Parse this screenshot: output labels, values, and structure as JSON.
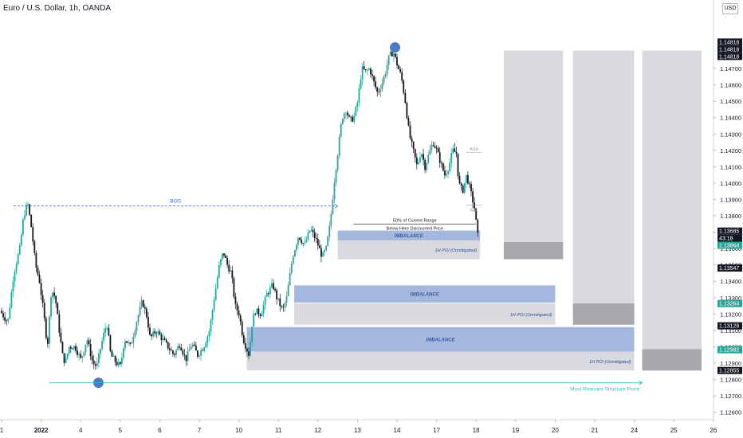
{
  "header": {
    "title": "Euro / U.S. Dollar, 1h, OANDA",
    "currency": "USD"
  },
  "chart_data": {
    "type": "candlestick",
    "symbol": "Euro / U.S. Dollar",
    "interval": "1h",
    "source": "OANDA",
    "ylim": [
      1.125,
      1.1488
    ],
    "price_ticks": [
      1.126,
      1.127,
      1.128,
      1.129,
      1.13,
      1.131,
      1.132,
      1.133,
      1.134,
      1.135,
      1.136,
      1.137,
      1.138,
      1.139,
      1.14,
      1.141,
      1.142,
      1.143,
      1.144,
      1.145,
      1.146,
      1.147
    ],
    "price_tick_labels": [
      "1.12600",
      "1.12700",
      "1.12800",
      "1.12900",
      "1.13000",
      "1.13100",
      "1.13200",
      "1.13300",
      "1.13400",
      "1.13500",
      "1.13600",
      "1.13700",
      "1.13800",
      "1.13900",
      "1.14000",
      "1.14100",
      "1.14200",
      "1.14300",
      "1.14400",
      "1.14500",
      "1.14600",
      "1.14700"
    ],
    "time_ticks": [
      {
        "label": "1",
        "day": 0
      },
      {
        "label": "2022",
        "day": 1
      },
      {
        "label": "4",
        "day": 2
      },
      {
        "label": "5",
        "day": 3
      },
      {
        "label": "6",
        "day": 4
      },
      {
        "label": "7",
        "day": 5
      },
      {
        "label": "10",
        "day": 6
      },
      {
        "label": "11",
        "day": 7
      },
      {
        "label": "12",
        "day": 8
      },
      {
        "label": "13",
        "day": 9
      },
      {
        "label": "14",
        "day": 10
      },
      {
        "label": "17",
        "day": 11
      },
      {
        "label": "18",
        "day": 12
      },
      {
        "label": "19",
        "day": 13
      },
      {
        "label": "20",
        "day": 14
      },
      {
        "label": "21",
        "day": 15
      },
      {
        "label": "24",
        "day": 16
      },
      {
        "label": "25",
        "day": 17
      },
      {
        "label": "26",
        "day": 18
      }
    ],
    "price_path": [
      [
        0.0,
        1.1322
      ],
      [
        0.2,
        1.1315
      ],
      [
        0.35,
        1.1345
      ],
      [
        0.5,
        1.136
      ],
      [
        0.6,
        1.138
      ],
      [
        0.7,
        1.1388
      ],
      [
        0.8,
        1.1372
      ],
      [
        0.9,
        1.135
      ],
      [
        1.0,
        1.134
      ],
      [
        1.1,
        1.1322
      ],
      [
        1.2,
        1.13
      ],
      [
        1.3,
        1.1335
      ],
      [
        1.4,
        1.133
      ],
      [
        1.5,
        1.131
      ],
      [
        1.58,
        1.1295
      ],
      [
        1.65,
        1.129
      ],
      [
        1.75,
        1.13
      ],
      [
        1.9,
        1.13
      ],
      [
        2.05,
        1.1292
      ],
      [
        2.2,
        1.1305
      ],
      [
        2.35,
        1.129
      ],
      [
        2.45,
        1.1288
      ],
      [
        2.55,
        1.13
      ],
      [
        2.7,
        1.1315
      ],
      [
        2.8,
        1.1295
      ],
      [
        2.95,
        1.129
      ],
      [
        3.05,
        1.1288
      ],
      [
        3.15,
        1.1305
      ],
      [
        3.3,
        1.13
      ],
      [
        3.45,
        1.1315
      ],
      [
        3.6,
        1.1328
      ],
      [
        3.72,
        1.1318
      ],
      [
        3.8,
        1.1305
      ],
      [
        3.95,
        1.131
      ],
      [
        4.1,
        1.1305
      ],
      [
        4.25,
        1.13
      ],
      [
        4.4,
        1.1295
      ],
      [
        4.55,
        1.1302
      ],
      [
        4.7,
        1.1292
      ],
      [
        4.85,
        1.1302
      ],
      [
        5.0,
        1.1295
      ],
      [
        5.15,
        1.13
      ],
      [
        5.3,
        1.131
      ],
      [
        5.42,
        1.133
      ],
      [
        5.55,
        1.135
      ],
      [
        5.65,
        1.1358
      ],
      [
        5.75,
        1.135
      ],
      [
        5.85,
        1.1345
      ],
      [
        5.95,
        1.1325
      ],
      [
        6.05,
        1.132
      ],
      [
        6.15,
        1.1305
      ],
      [
        6.22,
        1.13
      ],
      [
        6.3,
        1.1295
      ],
      [
        6.38,
        1.1315
      ],
      [
        6.45,
        1.1322
      ],
      [
        6.6,
        1.132
      ],
      [
        6.75,
        1.1332
      ],
      [
        6.9,
        1.1338
      ],
      [
        7.0,
        1.133
      ],
      [
        7.15,
        1.1322
      ],
      [
        7.25,
        1.133
      ],
      [
        7.4,
        1.1355
      ],
      [
        7.55,
        1.1368
      ],
      [
        7.7,
        1.1362
      ],
      [
        7.85,
        1.1372
      ],
      [
        8.0,
        1.1365
      ],
      [
        8.15,
        1.1355
      ],
      [
        8.25,
        1.136
      ],
      [
        8.35,
        1.1375
      ],
      [
        8.45,
        1.14
      ],
      [
        8.55,
        1.142
      ],
      [
        8.65,
        1.144
      ],
      [
        8.75,
        1.1445
      ],
      [
        8.85,
        1.1438
      ],
      [
        8.95,
        1.144
      ],
      [
        9.05,
        1.145
      ],
      [
        9.15,
        1.147
      ],
      [
        9.25,
        1.1468
      ],
      [
        9.35,
        1.147
      ],
      [
        9.45,
        1.1462
      ],
      [
        9.55,
        1.1455
      ],
      [
        9.65,
        1.146
      ],
      [
        9.75,
        1.1468
      ],
      [
        9.85,
        1.1478
      ],
      [
        9.95,
        1.148
      ],
      [
        10.05,
        1.1472
      ],
      [
        10.15,
        1.1465
      ],
      [
        10.25,
        1.145
      ],
      [
        10.35,
        1.143
      ],
      [
        10.45,
        1.142
      ],
      [
        10.55,
        1.141
      ],
      [
        10.65,
        1.142
      ],
      [
        10.75,
        1.141
      ],
      [
        10.85,
        1.1418
      ],
      [
        10.95,
        1.1425
      ],
      [
        11.05,
        1.142
      ],
      [
        11.15,
        1.1412
      ],
      [
        11.25,
        1.1405
      ],
      [
        11.35,
        1.141
      ],
      [
        11.45,
        1.142
      ],
      [
        11.55,
        1.1418
      ],
      [
        11.6,
        1.14
      ],
      [
        11.7,
        1.1395
      ],
      [
        11.8,
        1.1405
      ],
      [
        11.9,
        1.1395
      ],
      [
        12.0,
        1.1385
      ],
      [
        12.08,
        1.1368
      ]
    ],
    "annotations": {
      "bos": {
        "label": "BOS",
        "price": 1.1386,
        "day_start": 0.3,
        "day_end": 8.5
      },
      "fifty_pct": {
        "label": "50% of Current Range",
        "price": 1.1375,
        "day_start": 8.9,
        "day_end": 12.0
      },
      "discount": {
        "label": "Below Here Discounted Price",
        "price": 1.1368
      },
      "ash": {
        "label": "ASH",
        "price": 1.14215
      },
      "asl": {
        "label": "ASL",
        "price": 1.13865
      },
      "structure": {
        "label": "Most Relevant Structure Point",
        "price": 1.1278,
        "day_start": 1.2,
        "day_end": 16.2
      },
      "zones": [
        {
          "label": "IMBALANCE",
          "kind": "imbalance",
          "top": 1.1371,
          "bottom": 1.1365,
          "day_start": 8.5,
          "day_end": 12.1
        },
        {
          "label": "1H POI (Unmitigated)",
          "kind": "poi",
          "top": 1.1365,
          "bottom": 1.13535,
          "day_start": 8.5,
          "day_end": 12.1
        },
        {
          "label": "IMBALANCE",
          "kind": "imbalance",
          "top": 1.13375,
          "bottom": 1.1327,
          "day_start": 7.4,
          "day_end": 14.0
        },
        {
          "label": "1H POI (Unmitigated)",
          "kind": "poi",
          "top": 1.13265,
          "bottom": 1.13135,
          "day_start": 7.4,
          "day_end": 14.0
        },
        {
          "label": "IMBALANCE",
          "kind": "imbalance",
          "top": 1.1312,
          "bottom": 1.1297,
          "day_start": 6.2,
          "day_end": 16.0
        },
        {
          "label": "1H POI (Unmitigated)",
          "kind": "poi",
          "top": 1.1297,
          "bottom": 1.12855,
          "day_start": 6.2,
          "day_end": 16.0
        }
      ],
      "future_boxes": [
        {
          "day_start": 12.7,
          "day_end": 14.2,
          "top": 1.1481,
          "bottom": 1.13535,
          "mark_top": 1.1364,
          "mark_bottom": 1.13535
        },
        {
          "day_start": 14.45,
          "day_end": 16.0,
          "top": 1.1481,
          "bottom": 1.13135,
          "mark_top": 1.13265,
          "mark_bottom": 1.13135
        },
        {
          "day_start": 16.2,
          "day_end": 17.7,
          "top": 1.1481,
          "bottom": 1.12855,
          "mark_top": 1.12985,
          "mark_bottom": 1.12855
        }
      ]
    },
    "price_labels": [
      {
        "text": "1.14818",
        "price": 1.14818,
        "style": "dark",
        "stack": 0
      },
      {
        "text": "1.14818",
        "price": 1.14818,
        "style": "dark",
        "stack": 1
      },
      {
        "text": "1.14818",
        "price": 1.14818,
        "style": "dark",
        "stack": 2
      },
      {
        "text": "1.13685",
        "price": 1.13685,
        "style": "dark",
        "stack": 0
      },
      {
        "text": "43:18",
        "price": 1.13685,
        "style": "dark",
        "stack": 1
      },
      {
        "text": "1.13664",
        "price": 1.13664,
        "style": "green",
        "stack": 2
      },
      {
        "text": "1.13547",
        "price": 1.13547,
        "style": "dark",
        "stack": 3
      },
      {
        "text": "1.13264",
        "price": 1.13264,
        "style": "green",
        "stack": 0
      },
      {
        "text": "1.13128",
        "price": 1.13128,
        "style": "dark",
        "stack": 0
      },
      {
        "text": "1.12982",
        "price": 1.12982,
        "style": "green",
        "stack": 0
      },
      {
        "text": "1.12855",
        "price": 1.12855,
        "style": "dark",
        "stack": 0
      }
    ]
  }
}
